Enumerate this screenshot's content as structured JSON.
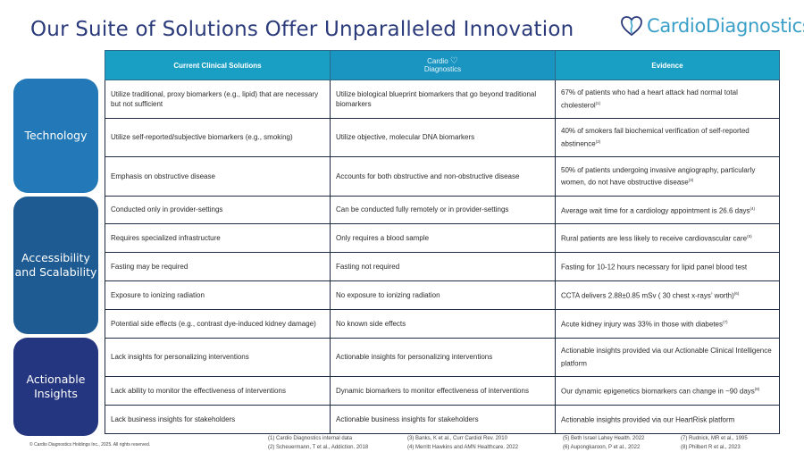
{
  "title": "Our Suite of Solutions Offer Unparalleled Innovation",
  "brand": {
    "name": "CardioDiagnostics",
    "color": "#3a9fc8"
  },
  "categories": [
    "Technology",
    "Accessibility and Scalability",
    "Actionable Insights"
  ],
  "table": {
    "headers": {
      "current": "Current Clinical Solutions",
      "company_line1": "Cardio",
      "company_line2": "Diagnostics",
      "evidence": "Evidence"
    },
    "rows": [
      {
        "current": "Utilize traditional, proxy biomarkers (e.g., lipid) that are necessary but not sufficient",
        "ours": "Utilize biological blueprint biomarkers that go beyond traditional biomarkers",
        "evidence": "67% of patients who had a heart attack had normal total cholesterol",
        "ref": "(1)"
      },
      {
        "current": "Utilize self-reported/subjective biomarkers (e.g., smoking)",
        "ours": "Utilize objective, molecular DNA biomarkers",
        "evidence": "40% of smokers fail biochemical verification of self-reported abstinence",
        "ref": "(2)"
      },
      {
        "current": "Emphasis on obstructive disease",
        "ours": "Accounts for both obstructive and non-obstructive disease",
        "evidence": "50% of patients undergoing invasive angiography, particularly women, do not have obstructive disease",
        "ref": "(3)"
      },
      {
        "current": "Conducted only in provider-settings",
        "ours": "Can be conducted fully remotely or in provider-settings",
        "evidence": "Average wait time for a cardiology appointment is 26.6 days",
        "ref": "(4)"
      },
      {
        "current": "Requires specialized infrastructure",
        "ours": "Only requires a blood sample",
        "evidence": "Rural patients are less likely to receive cardiovascular care",
        "ref": "(5)"
      },
      {
        "current": "Fasting may be required",
        "ours": "Fasting not required",
        "evidence": "Fasting for 10-12 hours necessary for lipid panel blood test",
        "ref": ""
      },
      {
        "current": "Exposure to ionizing radiation",
        "ours": "No exposure to ionizing radiation",
        "evidence": "CCTA delivers 2.88±0.85 mSv (   30 chest x-rays’ worth)",
        "ref": "(6)"
      },
      {
        "current": "Potential side effects (e.g., contrast dye-induced kidney damage)",
        "ours": "No known side effects",
        "evidence": "Acute kidney injury was 33% in those with diabetes",
        "ref": "(7)"
      },
      {
        "current": "Lack insights for personalizing interventions",
        "ours": "Actionable insights for personalizing interventions",
        "evidence": "Actionable insights provided via our Actionable Clinical Intelligence platform",
        "ref": ""
      },
      {
        "current": "Lack ability to monitor the effectiveness of interventions",
        "ours": "Dynamic biomarkers to monitor effectiveness of interventions",
        "evidence": "Our dynamic epigenetics biomarkers can change in ~90 days",
        "ref": "(8)"
      },
      {
        "current": "Lack business insights for stakeholders",
        "ours": "Actionable business insights for stakeholders",
        "evidence": "Actionable insights provided via our HeartRisk platform",
        "ref": ""
      }
    ]
  },
  "copyright": "© Cardio Diagnostics Holdings Inc., 2025. All rights reserved.",
  "references": [
    [
      "(1) Cardio Diagnostics internal data",
      "(2) Scheuermann, T et al., Addiction. 2018"
    ],
    [
      "(3) Banks, K et al., Curr Cardiol Rev. 2010",
      "(4) Merritt Hawkins and AMN Healthcare. 2022"
    ],
    [
      "(5) Beth Israel Lahey Health. 2022",
      "(6) Aupongkaroon, P et al., 2022"
    ],
    [
      "(7) Rudnick, MR et al., 1995",
      "(8) Philbert R et al., 2023"
    ]
  ]
}
